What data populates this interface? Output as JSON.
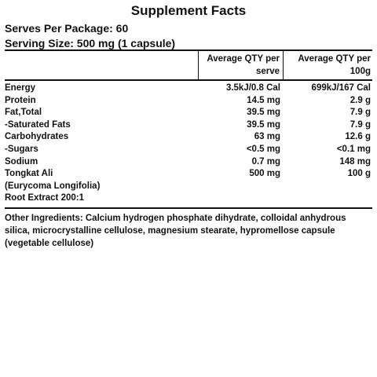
{
  "title": "Supplement Facts",
  "serves_per_package": "Serves Per Package: 60",
  "serving_size": "Serving Size: 500 mg (1 capsule)",
  "columns": {
    "per_serve": "Average QTY per serve",
    "per_100g": "Average QTY per 100g"
  },
  "rows": [
    {
      "name": "Energy",
      "serve": "3.5kJ/0.8 Cal",
      "per100": "699kJ/167 Cal"
    },
    {
      "name": "Protein",
      "serve": "14.5 mg",
      "per100": "2.9 g"
    },
    {
      "name": "Fat,Total",
      "serve": "39.5 mg",
      "per100": "7.9 g"
    },
    {
      "name": "-Saturated Fats",
      "serve": "39.5 mg",
      "per100": "7.9 g"
    },
    {
      "name": "Carbohydrates",
      "serve": "63 mg",
      "per100": "12.6 g"
    },
    {
      "name": "-Sugars",
      "serve": "<0.5 mg",
      "per100": "<0.1 mg"
    },
    {
      "name": "Sodium",
      "serve": "0.7 mg",
      "per100": "148 mg"
    },
    {
      "name": "Tongkat Ali",
      "serve": "500 mg",
      "per100": "100 g"
    },
    {
      "name": "(Eurycoma Longifolia)",
      "serve": "",
      "per100": ""
    },
    {
      "name": "Root Extract 200:1",
      "serve": "",
      "per100": ""
    }
  ],
  "other_ingredients": "Other Ingredients: Calcium hydrogen phosphate dihydrate, colloidal anhydrous silica, microcrystalline cellulose, magnesium stearate, hypromellose capsule (vegetable cellulose)"
}
